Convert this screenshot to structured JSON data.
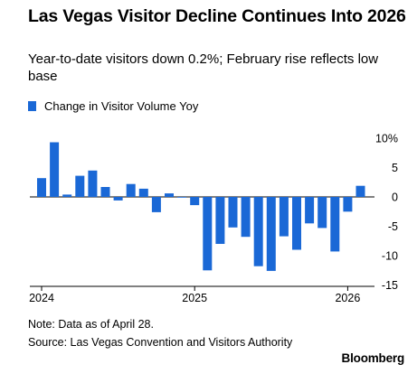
{
  "header": {
    "title": "Las Vegas Visitor Decline Continues Into 2026",
    "subtitle": "Year-to-date visitors down 0.2%; February rise reflects low base"
  },
  "footer": {
    "note": "Note: Data as of April 28.",
    "source": "Source: Las Vegas Convention and Visitors Authority",
    "brand": "Bloomberg"
  },
  "colors": {
    "bar": "#1a68d6"
  },
  "chart_data": {
    "type": "bar",
    "series": [
      {
        "name": "Change in Visitor Volume Yoy",
        "values": [
          3.2,
          9.3,
          0.4,
          3.6,
          4.5,
          1.7,
          -0.6,
          2.2,
          1.4,
          -2.6,
          0.6,
          -0.1,
          -1.4,
          -12.5,
          -8.0,
          -5.2,
          -6.8,
          -11.8,
          -12.6,
          -6.7,
          -9.0,
          -4.5,
          -5.3,
          -9.3,
          -2.5,
          1.9
        ]
      }
    ],
    "x_ticks": [
      "2024",
      "2025",
      "2026"
    ],
    "y_ticks": [
      "10%",
      "5",
      "0",
      "-5",
      "-10",
      "-15"
    ],
    "ylim": [
      -15,
      10
    ],
    "grid": false
  }
}
